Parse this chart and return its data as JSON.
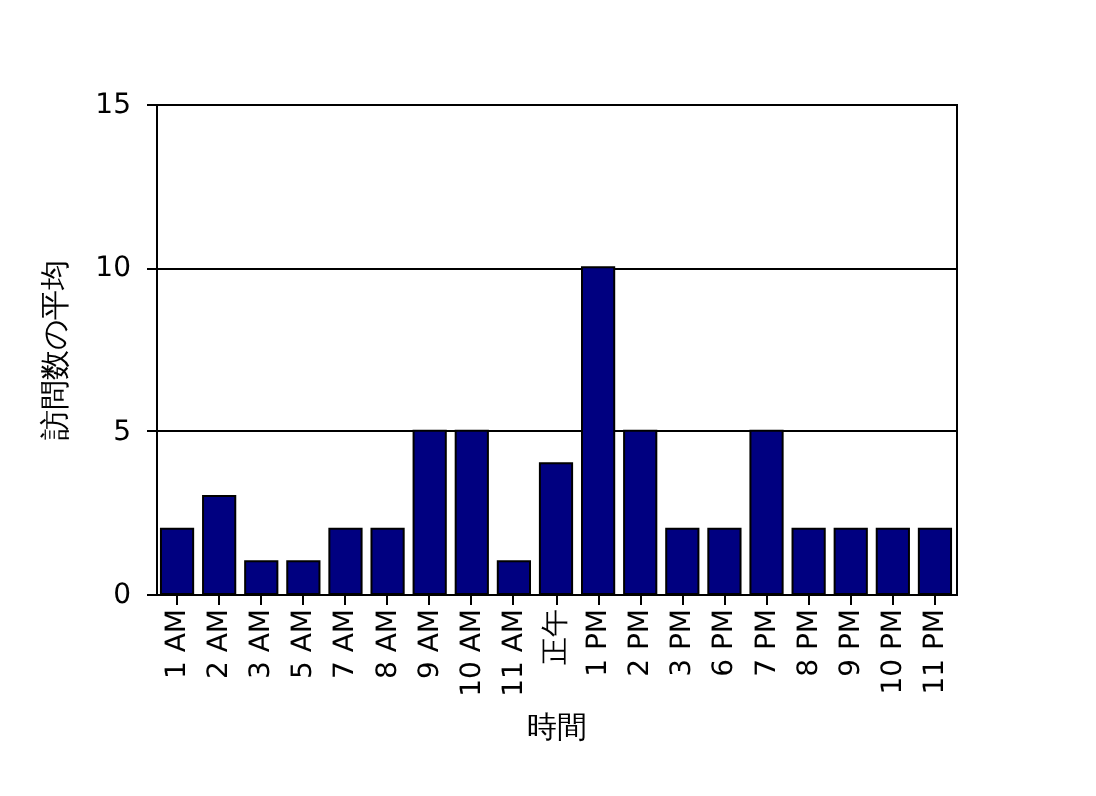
{
  "chart_data": {
    "type": "bar",
    "xlabel": "時間",
    "ylabel": "訪問数の平均",
    "categories": [
      "1 AM",
      "2 AM",
      "3 AM",
      "5 AM",
      "7 AM",
      "8 AM",
      "9 AM",
      "10 AM",
      "11 AM",
      "正午",
      "1 PM",
      "2 PM",
      "3 PM",
      "6 PM",
      "7 PM",
      "8 PM",
      "9 PM",
      "10 PM",
      "11 PM"
    ],
    "values": [
      2,
      3,
      1,
      1,
      2,
      2,
      5,
      5,
      1,
      4,
      10,
      5,
      2,
      2,
      5,
      2,
      2,
      2,
      2
    ],
    "color": "#000080",
    "ylim": [
      0,
      15
    ],
    "yticks": [
      0,
      5,
      10,
      15
    ],
    "grid": "y"
  }
}
